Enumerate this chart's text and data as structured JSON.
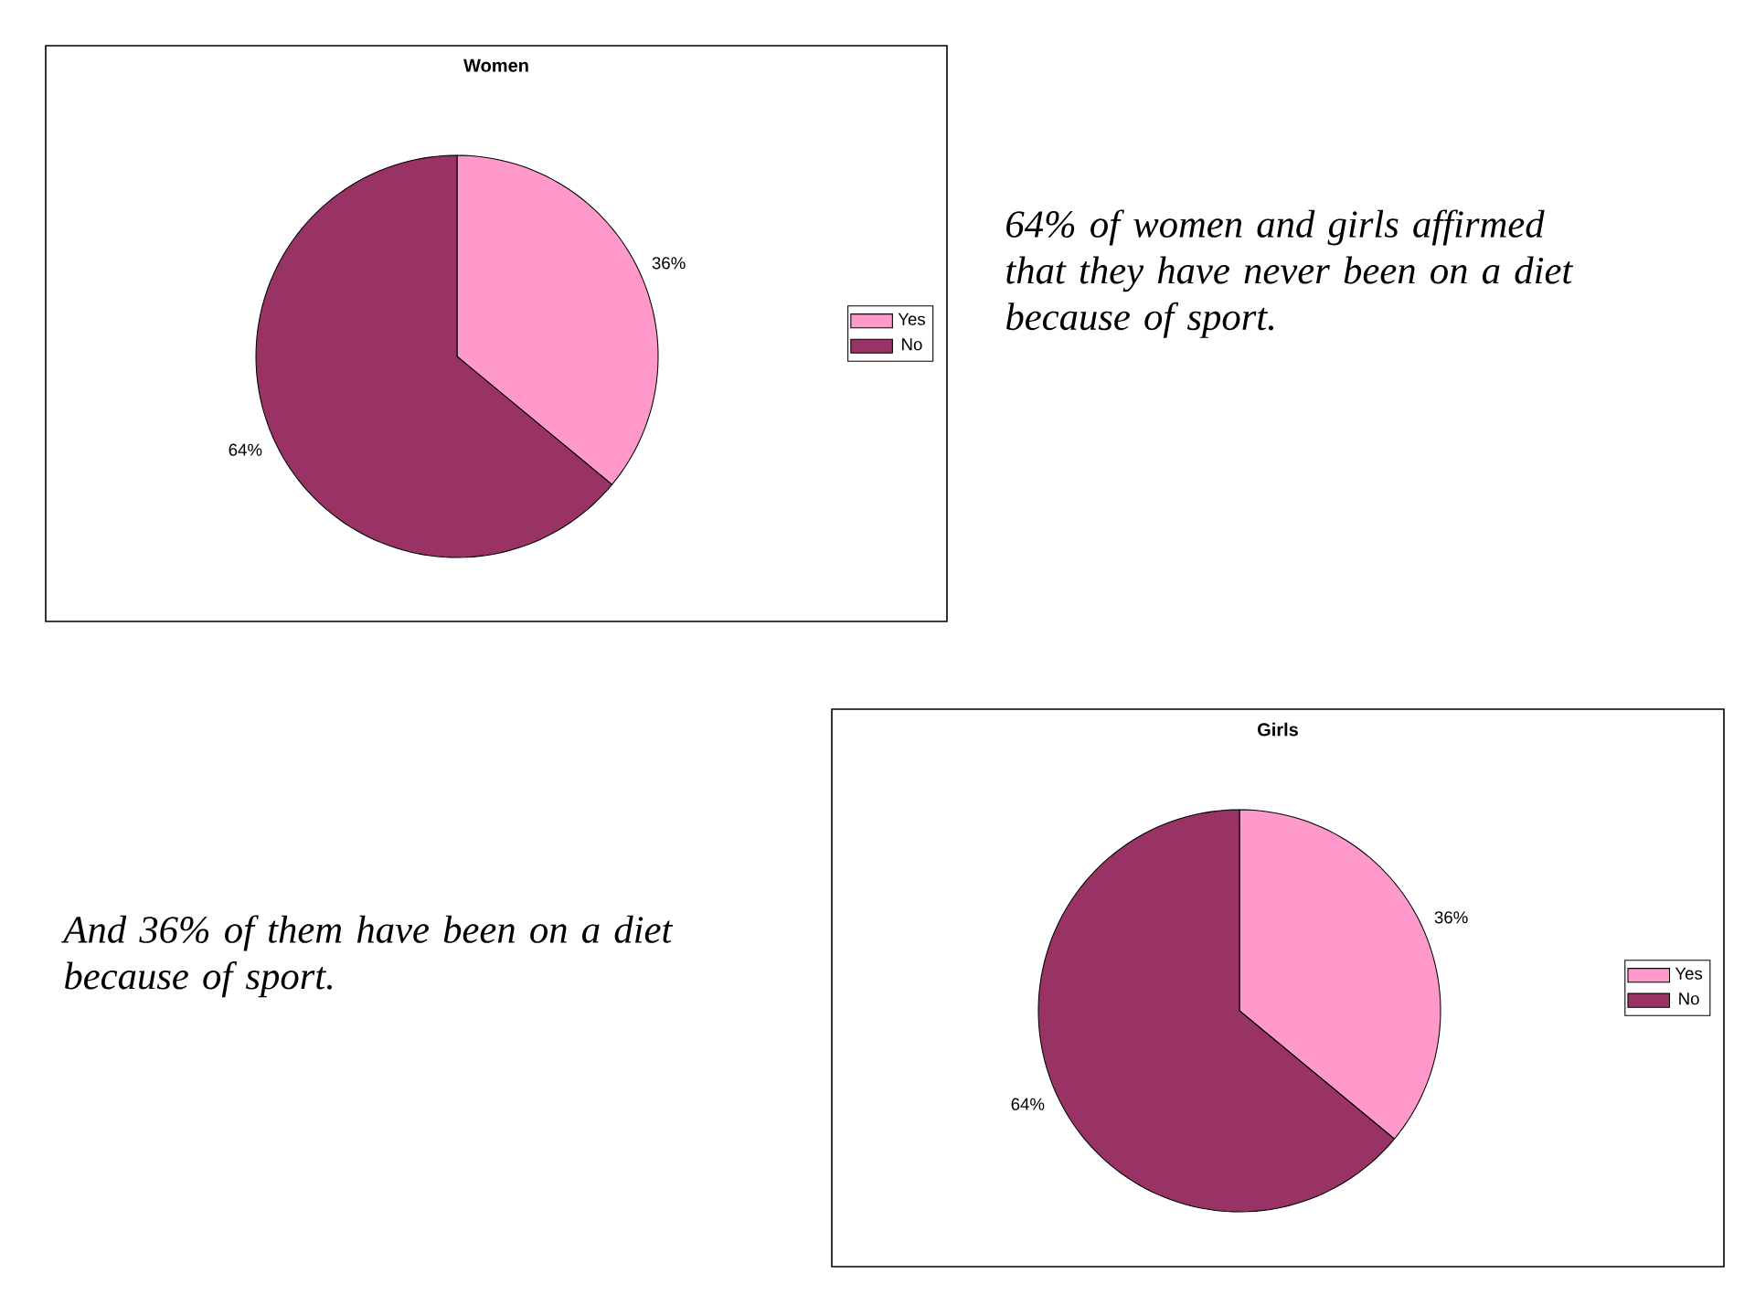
{
  "chart_data": [
    {
      "type": "pie",
      "title": "Women",
      "categories": [
        "Yes",
        "No"
      ],
      "values": [
        36,
        64
      ],
      "colors": [
        "#ff99cc",
        "#993366"
      ],
      "value_labels": [
        "36%",
        "64%"
      ],
      "legend": "right",
      "annotations": [
        "64% of women and girls affirmed that they have never been on a diet because of sport."
      ]
    },
    {
      "type": "pie",
      "title": "Girls",
      "categories": [
        "Yes",
        "No"
      ],
      "values": [
        36,
        64
      ],
      "colors": [
        "#ff99cc",
        "#993366"
      ],
      "value_labels": [
        "36%",
        "64%"
      ],
      "legend": "right",
      "annotations": [
        "And 36% of them have been on a diet because of sport."
      ]
    }
  ]
}
